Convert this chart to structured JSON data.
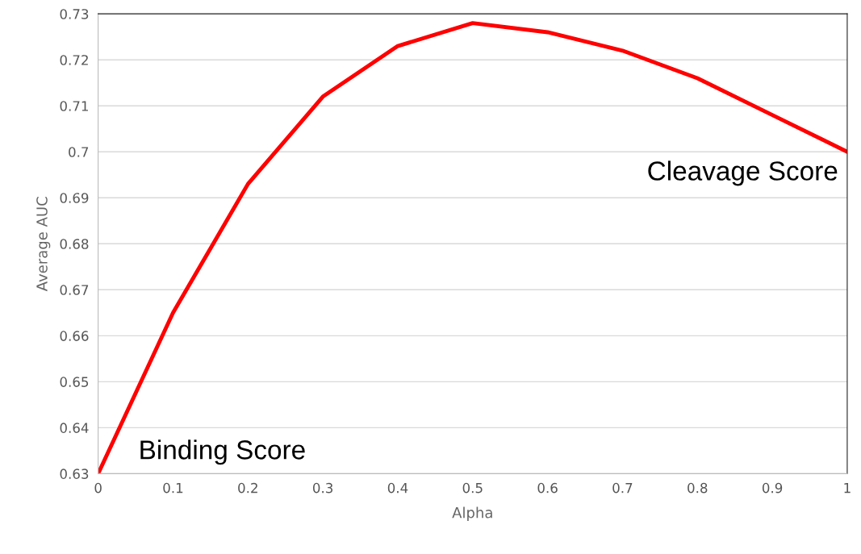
{
  "chart_data": {
    "type": "line",
    "xlabel": "Alpha",
    "ylabel": "Average AUC",
    "x": [
      0,
      0.1,
      0.2,
      0.3,
      0.4,
      0.5,
      0.6,
      0.7,
      0.8,
      0.9,
      1
    ],
    "series": [
      {
        "color": "#ff0000",
        "values": [
          0.63,
          0.665,
          0.693,
          0.712,
          0.723,
          0.728,
          0.726,
          0.722,
          0.716,
          0.708,
          0.7
        ]
      }
    ],
    "xlim": [
      0,
      1
    ],
    "xticks": [
      0,
      0.1,
      0.2,
      0.3,
      0.4,
      0.5,
      0.6,
      0.7,
      0.8,
      0.9,
      1
    ],
    "ylim": [
      0.63,
      0.73
    ],
    "yticks": [
      0.63,
      0.64,
      0.65,
      0.66,
      0.67,
      0.68,
      0.69,
      0.7,
      0.71,
      0.72,
      0.73
    ],
    "grid": "y",
    "marker": "none",
    "line_style": "solid",
    "annotations": [
      {
        "text": "Binding Score",
        "x": 0,
        "y": 0.63
      },
      {
        "text": "Cleavage Score",
        "x": 1,
        "y": 0.7
      }
    ]
  }
}
